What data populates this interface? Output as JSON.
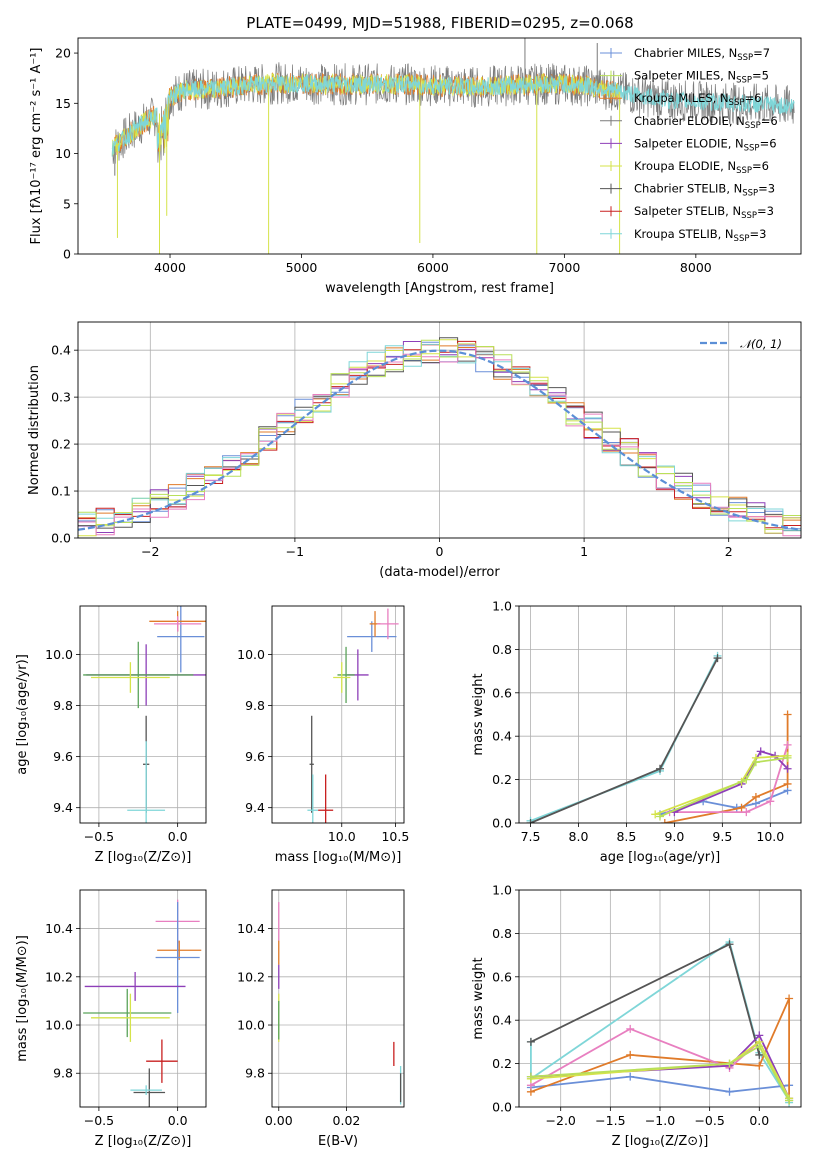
{
  "figure_title": "PLATE=0499, MJD=51988, FIBERID=0295, z=0.068",
  "colors": {
    "chabrier_miles": "#6a8fd8",
    "salpeter_miles": "#b9e05a",
    "kroupa_miles": "#e07b2a",
    "chabrier_elodie": "#7a7a7a",
    "salpeter_elodie": "#8e3fb8",
    "kroupa_elodie": "#d5e34a",
    "chabrier_stelib": "#555555",
    "salpeter_stelib": "#c82020",
    "kroupa_stelib": "#7fd6d8",
    "pink": "#e87fc0",
    "green": "#5aa35a",
    "normal": "#5b8fd6"
  },
  "chart_data": [
    {
      "id": "spectrum",
      "type": "line",
      "xlabel": "wavelength [Angstrom, rest frame]",
      "ylabel": "Flux [fλ10⁻¹⁷ erg cm⁻² s⁻¹ A⁻¹]",
      "xlim": [
        3300,
        8800
      ],
      "ylim": [
        0,
        21.5
      ],
      "xticks": [
        "4000",
        "5000",
        "6000",
        "7000",
        "8000"
      ],
      "yticks": [
        "0",
        "5",
        "10",
        "15",
        "20"
      ],
      "legend": [
        {
          "label": "Chabrier MILES, N",
          "sub": "SSP",
          "suffix": "=7",
          "color_key": "chabrier_miles"
        },
        {
          "label": "Salpeter MILES, N",
          "sub": "SSP",
          "suffix": "=5",
          "color_key": "salpeter_miles"
        },
        {
          "label": "Kroupa MILES, N",
          "sub": "SSP",
          "suffix": "=6",
          "color_key": "kroupa_miles"
        },
        {
          "label": "Chabrier ELODIE, N",
          "sub": "SSP",
          "suffix": "=6",
          "color_key": "chabrier_elodie"
        },
        {
          "label": "Salpeter ELODIE, N",
          "sub": "SSP",
          "suffix": "=6",
          "color_key": "salpeter_elodie"
        },
        {
          "label": "Kroupa ELODIE, N",
          "sub": "SSP",
          "suffix": "=6",
          "color_key": "kroupa_elodie"
        },
        {
          "label": "Chabrier STELIB, N",
          "sub": "SSP",
          "suffix": "=3",
          "color_key": "chabrier_stelib"
        },
        {
          "label": "Salpeter STELIB, N",
          "sub": "SSP",
          "suffix": "=3",
          "color_key": "salpeter_stelib"
        },
        {
          "label": "Kroupa STELIB, N",
          "sub": "SSP",
          "suffix": "=3",
          "color_key": "kroupa_stelib"
        }
      ],
      "continuum": [
        [
          3560,
          10.5
        ],
        [
          3650,
          11.5
        ],
        [
          3750,
          12.6
        ],
        [
          3850,
          13.5
        ],
        [
          3950,
          14.2
        ],
        [
          4000,
          15.6
        ],
        [
          4100,
          16.3
        ],
        [
          4300,
          16.4
        ],
        [
          4500,
          16.7
        ],
        [
          4800,
          17.0
        ],
        [
          5000,
          17.0
        ],
        [
          5200,
          16.9
        ],
        [
          5500,
          16.9
        ],
        [
          5800,
          16.9
        ],
        [
          6000,
          16.8
        ],
        [
          6300,
          16.6
        ],
        [
          6600,
          16.8
        ],
        [
          6800,
          16.9
        ],
        [
          7000,
          16.9
        ],
        [
          7200,
          16.7
        ],
        [
          7400,
          16.2
        ],
        [
          7600,
          15.7
        ],
        [
          7800,
          15.3
        ],
        [
          8000,
          15.2
        ],
        [
          8300,
          15.0
        ],
        [
          8600,
          14.8
        ],
        [
          8750,
          14.7
        ]
      ],
      "spikes": [
        {
          "x": 3600,
          "y": 1.6
        },
        {
          "x": 3920,
          "y": 0.0
        },
        {
          "x": 3975,
          "y": 3.8
        },
        {
          "x": 4750,
          "y": 0.0
        },
        {
          "x": 5900,
          "y": 1.1
        },
        {
          "x": 6790,
          "y": 0.0
        },
        {
          "x": 7420,
          "y": 0.0
        },
        {
          "x": 6700,
          "y": 21.5
        },
        {
          "x": 7250,
          "y": 21.0
        },
        {
          "x": 3580,
          "y": 7.8
        }
      ]
    },
    {
      "id": "residuals",
      "type": "histogram",
      "xlabel": "(data-model)/error",
      "ylabel": "Normed distribution",
      "xlim": [
        -2.5,
        2.5
      ],
      "ylim": [
        0,
        0.46
      ],
      "xticks": [
        "−2",
        "−1",
        "0",
        "1",
        "2"
      ],
      "xtick_values": [
        -2,
        -1,
        0,
        1,
        2
      ],
      "yticks": [
        "0.0",
        "0.1",
        "0.2",
        "0.3",
        "0.4"
      ],
      "ytick_values": [
        0,
        0.1,
        0.2,
        0.3,
        0.4
      ],
      "legend_label": "𝒩(0, 1)",
      "bin_width": 0.125
    },
    {
      "id": "age_vs_Z",
      "type": "errorbar",
      "xlabel": "Z [log₁₀(Z/Z⊙)]",
      "ylabel": "age  [log₁₀(age/yr)]",
      "xlim": [
        -0.62,
        0.18
      ],
      "ylim": [
        9.34,
        10.19
      ],
      "xticks": [
        "−0.5",
        "0.0"
      ],
      "xtick_values": [
        -0.5,
        0.0
      ],
      "yticks": [
        "9.4",
        "9.6",
        "9.8",
        "10.0"
      ],
      "ytick_values": [
        9.4,
        9.6,
        9.8,
        10.0
      ],
      "points": [
        {
          "x": 0.02,
          "xerr": 0.15,
          "y": 10.07,
          "yerr": 0.14,
          "color_key": "chabrier_miles"
        },
        {
          "x": 0.0,
          "xerr": 0.18,
          "y": 10.13,
          "yerr": 0.04,
          "color_key": "kroupa_miles"
        },
        {
          "x": 0.0,
          "xerr": 0.15,
          "y": 10.12,
          "yerr": 0.03,
          "color_key": "pink"
        },
        {
          "x": -0.2,
          "xerr": 0.38,
          "y": 9.92,
          "yerr": 0.12,
          "color_key": "salpeter_elodie"
        },
        {
          "x": -0.25,
          "xerr": 0.35,
          "y": 9.92,
          "yerr": 0.13,
          "color_key": "green"
        },
        {
          "x": -0.3,
          "xerr": 0.25,
          "y": 9.91,
          "yerr": 0.06,
          "color_key": "kroupa_elodie"
        },
        {
          "x": -0.2,
          "xerr": 0.02,
          "y": 9.57,
          "yerr": 0.19,
          "color_key": "chabrier_stelib"
        },
        {
          "x": -0.2,
          "xerr": 0.12,
          "y": 9.39,
          "yerr": 0.27,
          "color_key": "kroupa_stelib"
        }
      ]
    },
    {
      "id": "age_vs_mass",
      "type": "errorbar",
      "xlabel": "mass [log₁₀(M/M⊙)]",
      "xlim": [
        9.35,
        10.58
      ],
      "ylim": [
        9.34,
        10.19
      ],
      "xticks": [
        "10.0",
        "10.5"
      ],
      "xtick_values": [
        10.0,
        10.5
      ],
      "yticks": [
        "9.4",
        "9.6",
        "9.8",
        "10.0"
      ],
      "ytick_values": [
        9.4,
        9.6,
        9.8,
        10.0
      ],
      "points": [
        {
          "x": 10.28,
          "xerr": 0.23,
          "y": 10.07,
          "yerr": 0.06,
          "color_key": "chabrier_miles"
        },
        {
          "x": 10.31,
          "xerr": 0.05,
          "y": 10.12,
          "yerr": 0.05,
          "color_key": "kroupa_miles"
        },
        {
          "x": 10.43,
          "xerr": 0.1,
          "y": 10.12,
          "yerr": 0.06,
          "color_key": "pink"
        },
        {
          "x": 10.15,
          "xerr": 0.1,
          "y": 9.92,
          "yerr": 0.1,
          "color_key": "salpeter_elodie"
        },
        {
          "x": 10.04,
          "xerr": 0.08,
          "y": 9.92,
          "yerr": 0.11,
          "color_key": "green"
        },
        {
          "x": 10.0,
          "xerr": 0.08,
          "y": 9.91,
          "yerr": 0.06,
          "color_key": "kroupa_elodie"
        },
        {
          "x": 9.72,
          "xerr": 0.02,
          "y": 9.57,
          "yerr": 0.19,
          "color_key": "chabrier_stelib"
        },
        {
          "x": 9.73,
          "xerr": 0.05,
          "y": 9.39,
          "yerr": 0.14,
          "color_key": "kroupa_stelib"
        },
        {
          "x": 9.85,
          "xerr": 0.07,
          "y": 9.39,
          "yerr": 0.14,
          "color_key": "salpeter_stelib"
        }
      ]
    },
    {
      "id": "weight_vs_age",
      "type": "line",
      "xlabel": "age  [log₁₀(age/yr)]",
      "ylabel": "mass weight",
      "xlim": [
        7.38,
        10.32
      ],
      "ylim": [
        0,
        1.0
      ],
      "xticks": [
        "7.5",
        "8.0",
        "8.5",
        "9.0",
        "9.5",
        "10.0"
      ],
      "xtick_values": [
        7.5,
        8.0,
        8.5,
        9.0,
        9.5,
        10.0
      ],
      "yticks": [
        "0.0",
        "0.2",
        "0.4",
        "0.6",
        "0.8",
        "1.0"
      ],
      "ytick_values": [
        0,
        0.2,
        0.4,
        0.6,
        0.8,
        1.0
      ],
      "series": [
        {
          "color_key": "kroupa_stelib",
          "x": [
            7.5,
            8.85,
            9.45
          ],
          "y": [
            0.01,
            0.24,
            0.77
          ]
        },
        {
          "color_key": "chabrier_stelib",
          "x": [
            7.5,
            8.85,
            9.45
          ],
          "y": [
            0.0,
            0.25,
            0.76
          ]
        },
        {
          "color_key": "chabrier_miles",
          "x": [
            8.85,
            9.3,
            9.65,
            9.85,
            10.18
          ],
          "y": [
            0.04,
            0.1,
            0.07,
            0.09,
            0.15
          ]
        },
        {
          "color_key": "kroupa_miles",
          "x": [
            8.9,
            9.7,
            9.85,
            10.18,
            10.18
          ],
          "y": [
            0.0,
            0.07,
            0.12,
            0.18,
            0.5
          ]
        },
        {
          "color_key": "pink",
          "x": [
            8.95,
            9.75,
            10.0,
            10.18
          ],
          "y": [
            0.05,
            0.05,
            0.1,
            0.36
          ]
        },
        {
          "color_key": "salpeter_elodie",
          "x": [
            9.0,
            9.7,
            9.9,
            10.05,
            10.18
          ],
          "y": [
            0.05,
            0.18,
            0.33,
            0.31,
            0.25
          ]
        },
        {
          "color_key": "kroupa_elodie",
          "x": [
            8.8,
            9.7,
            9.85,
            10.18
          ],
          "y": [
            0.04,
            0.19,
            0.3,
            0.31
          ]
        },
        {
          "color_key": "salpeter_miles",
          "x": [
            8.85,
            9.75,
            9.85,
            10.18
          ],
          "y": [
            0.03,
            0.2,
            0.28,
            0.3
          ]
        }
      ]
    },
    {
      "id": "mass_vs_Z",
      "type": "errorbar",
      "xlabel": "Z [log₁₀(Z/Z⊙)]",
      "ylabel": "mass [log₁₀(M/M⊙)]",
      "xlim": [
        -0.62,
        0.18
      ],
      "ylim": [
        9.66,
        10.56
      ],
      "xticks": [
        "−0.5",
        "0.0"
      ],
      "xtick_values": [
        -0.5,
        0.0
      ],
      "yticks": [
        "9.8",
        "10.0",
        "10.2",
        "10.4"
      ],
      "ytick_values": [
        9.8,
        10.0,
        10.2,
        10.4
      ],
      "points": [
        {
          "x": 0.0,
          "xerr": 0.14,
          "y": 10.43,
          "yerr": 0.09,
          "color_key": "pink"
        },
        {
          "x": 0.01,
          "xerr": 0.14,
          "y": 10.31,
          "yerr": 0.04,
          "color_key": "kroupa_miles"
        },
        {
          "x": 0.0,
          "xerr": 0.14,
          "y": 10.28,
          "yerr": 0.23,
          "color_key": "chabrier_miles"
        },
        {
          "x": -0.27,
          "xerr": 0.32,
          "y": 10.16,
          "yerr": 0.06,
          "color_key": "salpeter_elodie"
        },
        {
          "x": -0.32,
          "xerr": 0.28,
          "y": 10.05,
          "yerr": 0.1,
          "color_key": "green"
        },
        {
          "x": -0.3,
          "xerr": 0.25,
          "y": 10.03,
          "yerr": 0.1,
          "color_key": "kroupa_elodie"
        },
        {
          "x": -0.1,
          "xerr": 0.1,
          "y": 9.85,
          "yerr": 0.09,
          "color_key": "salpeter_stelib"
        },
        {
          "x": -0.18,
          "xerr": 0.1,
          "y": 9.72,
          "yerr": 0.1,
          "color_key": "chabrier_stelib"
        },
        {
          "x": -0.2,
          "xerr": 0.1,
          "y": 9.73,
          "yerr": 0.02,
          "color_key": "kroupa_stelib"
        }
      ]
    },
    {
      "id": "mass_vs_EBV",
      "type": "errorbar",
      "xlabel": "E(B-V)",
      "xlim": [
        -0.002,
        0.037
      ],
      "ylim": [
        9.66,
        10.56
      ],
      "xticks": [
        "0.00",
        "0.02"
      ],
      "xtick_values": [
        0.0,
        0.02
      ],
      "yticks": [
        "9.8",
        "10.0",
        "10.2",
        "10.4"
      ],
      "ytick_values": [
        9.8,
        10.0,
        10.2,
        10.4
      ],
      "points": [
        {
          "x": 0.0,
          "xerr": 0.0,
          "y": 10.43,
          "yerr": 0.08,
          "color_key": "pink"
        },
        {
          "x": 0.0,
          "xerr": 0.0,
          "y": 10.3,
          "yerr": 0.05,
          "color_key": "kroupa_miles"
        },
        {
          "x": 0.0,
          "xerr": 0.0,
          "y": 10.2,
          "yerr": 0.05,
          "color_key": "salpeter_elodie"
        },
        {
          "x": 0.0,
          "xerr": 0.0,
          "y": 10.03,
          "yerr": 0.1,
          "color_key": "kroupa_elodie"
        },
        {
          "x": 0.0,
          "xerr": 0.0,
          "y": 10.02,
          "yerr": 0.08,
          "color_key": "green"
        },
        {
          "x": 0.034,
          "xerr": 0.0,
          "y": 9.88,
          "yerr": 0.05,
          "color_key": "salpeter_stelib"
        },
        {
          "x": 0.036,
          "xerr": 0.0,
          "y": 9.75,
          "yerr": 0.08,
          "color_key": "kroupa_stelib"
        },
        {
          "x": 0.036,
          "xerr": 0.0,
          "y": 9.74,
          "yerr": 0.06,
          "color_key": "chabrier_stelib"
        }
      ]
    },
    {
      "id": "weight_vs_Z",
      "type": "line",
      "xlabel": "Z [log₁₀(Z/Z⊙)]",
      "ylabel": "mass weight",
      "xlim": [
        -2.42,
        0.42
      ],
      "ylim": [
        0,
        1.0
      ],
      "xticks": [
        "−2.0",
        "−1.5",
        "−1.0",
        "−0.5",
        "0.0"
      ],
      "xtick_values": [
        -2.0,
        -1.5,
        -1.0,
        -0.5,
        0.0
      ],
      "yticks": [
        "0.0",
        "0.2",
        "0.4",
        "0.6",
        "0.8",
        "1.0"
      ],
      "ytick_values": [
        0,
        0.2,
        0.4,
        0.6,
        0.8,
        1.0
      ],
      "series": [
        {
          "color_key": "kroupa_stelib",
          "x": [
            -2.3,
            -2.3,
            -0.3,
            0.0,
            0.3,
            0.3
          ],
          "y": [
            0.3,
            0.13,
            0.76,
            0.25,
            0.03,
            0.02
          ]
        },
        {
          "color_key": "chabrier_stelib",
          "x": [
            -2.3,
            -0.3,
            0.0
          ],
          "y": [
            0.3,
            0.75,
            0.24
          ]
        },
        {
          "color_key": "chabrier_miles",
          "x": [
            -2.3,
            -1.3,
            -0.3,
            0.3
          ],
          "y": [
            0.09,
            0.14,
            0.07,
            0.1
          ]
        },
        {
          "color_key": "kroupa_miles",
          "x": [
            -2.3,
            -1.3,
            0.0,
            0.3,
            0.3
          ],
          "y": [
            0.07,
            0.24,
            0.19,
            0.5,
            0.03
          ]
        },
        {
          "color_key": "pink",
          "x": [
            -2.3,
            -1.3,
            -0.3,
            0.0
          ],
          "y": [
            0.1,
            0.36,
            0.18,
            0.3
          ]
        },
        {
          "color_key": "salpeter_elodie",
          "x": [
            -2.3,
            -0.3,
            0.0,
            0.3
          ],
          "y": [
            0.14,
            0.19,
            0.33,
            0.04
          ]
        },
        {
          "color_key": "kroupa_elodie",
          "x": [
            -2.3,
            -0.3,
            0.0,
            0.3
          ],
          "y": [
            0.13,
            0.2,
            0.3,
            0.04
          ]
        },
        {
          "color_key": "salpeter_miles",
          "x": [
            -2.3,
            -0.3,
            0.0,
            0.3
          ],
          "y": [
            0.14,
            0.2,
            0.28,
            0.03
          ]
        }
      ]
    }
  ]
}
